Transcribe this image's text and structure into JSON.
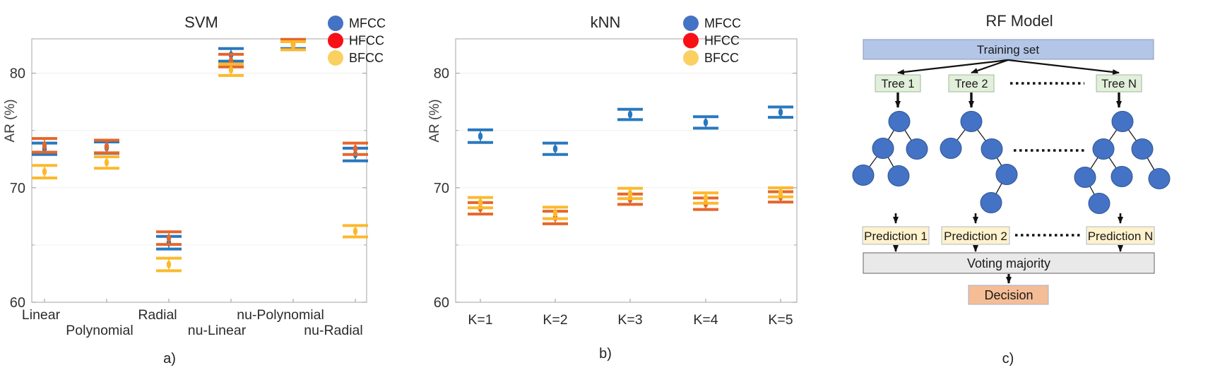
{
  "captions": {
    "a": "a)",
    "b": "b)",
    "c": "c)"
  },
  "chart_data": [
    {
      "type": "scatter",
      "error_bars": true,
      "title": "SVM",
      "xlabel": "",
      "ylabel": "AR (%)",
      "categories": [
        "Linear",
        "Polynomial",
        "Radial",
        "nu-Linear",
        "nu-Polynomial",
        "nu-Radial"
      ],
      "series": [
        {
          "name": "MFCC",
          "line_color": "#2878BE",
          "legend_color": "#4472C4",
          "values": [
            73.4,
            73.5,
            65.2,
            81.6,
            82.5,
            72.9
          ],
          "errors": [
            0.5,
            0.5,
            0.55,
            0.55,
            0.35,
            0.55
          ]
        },
        {
          "name": "HFCC",
          "line_color": "#E5662B",
          "legend_color": "#F90F16",
          "values": [
            73.7,
            73.6,
            65.6,
            81.1,
            82.5,
            73.4
          ],
          "errors": [
            0.6,
            0.55,
            0.55,
            0.55,
            0.45,
            0.5
          ]
        },
        {
          "name": "BFCC",
          "line_color": "#FCB92C",
          "legend_color": "#FAD061",
          "values": [
            71.4,
            72.2,
            63.3,
            80.3,
            82.4,
            66.2
          ],
          "errors": [
            0.55,
            0.5,
            0.55,
            0.5,
            0.35,
            0.5
          ]
        }
      ],
      "ylim": [
        60,
        83
      ],
      "yticks": [
        60,
        70,
        80
      ],
      "yticks_minor": [
        65,
        75
      ],
      "grid": "very-faint-horizontal",
      "legend_position": "top-right"
    },
    {
      "type": "scatter",
      "error_bars": true,
      "title": "kNN",
      "xlabel": "",
      "ylabel": "AR (%)",
      "categories": [
        "K=1",
        "K=2",
        "K=3",
        "K=4",
        "K=5"
      ],
      "series": [
        {
          "name": "MFCC",
          "line_color": "#2878BE",
          "legend_color": "#4472C4",
          "values": [
            74.5,
            73.4,
            76.4,
            75.7,
            76.6
          ],
          "errors": [
            0.55,
            0.5,
            0.45,
            0.5,
            0.45
          ]
        },
        {
          "name": "HFCC",
          "line_color": "#E5662B",
          "legend_color": "#F90F16",
          "values": [
            68.2,
            67.4,
            69.0,
            68.6,
            69.2
          ],
          "errors": [
            0.5,
            0.55,
            0.45,
            0.5,
            0.45
          ]
        },
        {
          "name": "BFCC",
          "line_color": "#FCB92C",
          "legend_color": "#FAD061",
          "values": [
            68.7,
            67.8,
            69.5,
            69.1,
            69.6
          ],
          "errors": [
            0.45,
            0.5,
            0.45,
            0.45,
            0.4
          ]
        }
      ],
      "ylim": [
        60,
        83
      ],
      "yticks": [
        60,
        70,
        80
      ],
      "yticks_minor": [
        65,
        75
      ],
      "grid": "very-faint-horizontal",
      "legend_position": "top-right"
    }
  ],
  "diagram": {
    "title": "RF Model",
    "training_label": "Training set",
    "voting_label": "Voting majority",
    "decision_label": "Decision",
    "prediction_labels": [
      "Prediction 1",
      "Prediction 2",
      "Prediction N"
    ],
    "trees": [
      {
        "label": "Tree 1",
        "nodes": [
          [
            2,
            172
          ],
          [
            -21,
            210
          ],
          [
            27,
            211
          ],
          [
            -49,
            248
          ],
          [
            1,
            249
          ]
        ],
        "edges": [
          [
            0,
            1
          ],
          [
            0,
            2
          ],
          [
            1,
            3
          ],
          [
            1,
            4
          ]
        ]
      },
      {
        "label": "Tree 2",
        "nodes": [
          [
            0,
            172
          ],
          [
            -29,
            210
          ],
          [
            29,
            211
          ],
          [
            50,
            247
          ],
          [
            28,
            287
          ]
        ],
        "edges": [
          [
            0,
            1
          ],
          [
            0,
            2
          ],
          [
            2,
            3
          ],
          [
            3,
            4
          ]
        ]
      },
      {
        "label": "Tree N",
        "nodes": [
          [
            5,
            172
          ],
          [
            -22,
            211
          ],
          [
            33,
            211
          ],
          [
            -48,
            251
          ],
          [
            4,
            250
          ],
          [
            57,
            253
          ],
          [
            -28,
            288
          ]
        ],
        "edges": [
          [
            0,
            1
          ],
          [
            0,
            2
          ],
          [
            1,
            3
          ],
          [
            1,
            4
          ],
          [
            2,
            5
          ],
          [
            3,
            6
          ]
        ]
      }
    ],
    "colors": {
      "training_fill": "#B3C6E7",
      "training_stroke": "#8A9AB5",
      "tree_fill": "#E2EFDA",
      "tree_stroke": "#9CB89C",
      "node_fill": "#4472C4",
      "node_stroke": "#2F5597",
      "prediction_fill": "#FFF2CC",
      "prediction_stroke": "#AEB8CE",
      "voting_fill": "#E9E9E9",
      "voting_stroke": "#636363",
      "decision_fill": "#F5BD96",
      "decision_stroke": "#9FB1D1",
      "arrow": "#111111",
      "edge": "#1a1a1a"
    }
  }
}
